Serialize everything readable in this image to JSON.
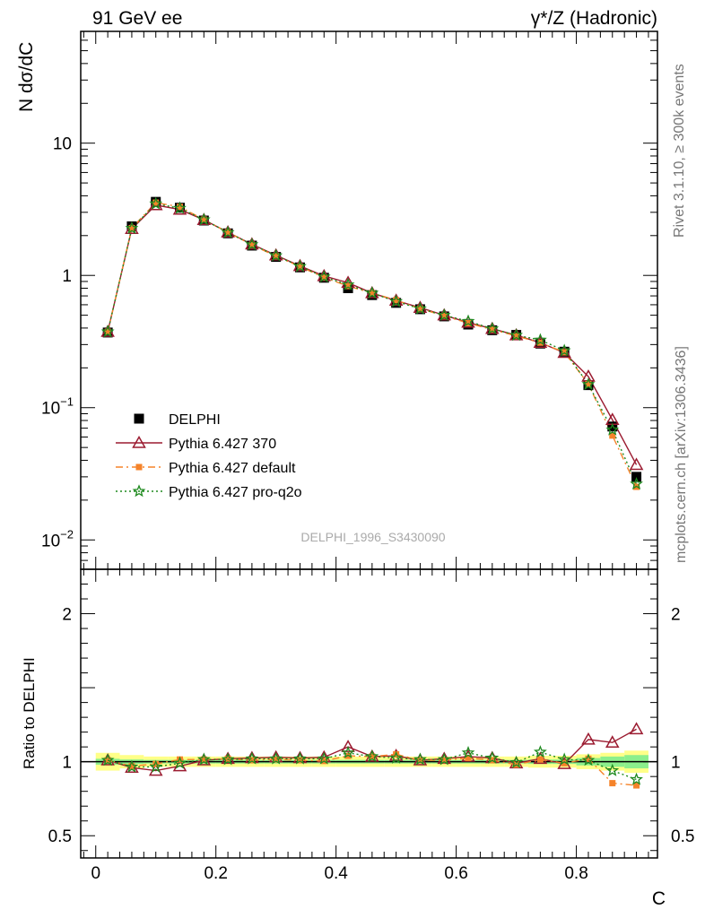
{
  "header": {
    "left": "91 GeV ee",
    "right": "γ*/Z (Hadronic)"
  },
  "side_labels": {
    "rivet": "Rivet 3.1.10, ≥ 300k events",
    "mcplots": "mcplots.cern.ch [arXiv:1306.3436]"
  },
  "watermark": "DELPHI_1996_S3430090",
  "chart_data": {
    "type": "line",
    "title": "",
    "xlabel": "C",
    "ylabel": "N dσ/dC",
    "ratio_ylabel": "Ratio to DELPHI",
    "xlim": [
      -0.025,
      0.935
    ],
    "ylim": [
      0.006,
      70
    ],
    "yscale": "log",
    "ratio_ylim": [
      0.35,
      2.3
    ],
    "x_ticks": [
      {
        "v": 0,
        "label": "0"
      },
      {
        "v": 0.2,
        "label": "0.2"
      },
      {
        "v": 0.4,
        "label": "0.4"
      },
      {
        "v": 0.6,
        "label": "0.6"
      },
      {
        "v": 0.8,
        "label": "0.8"
      }
    ],
    "y_ticks": [
      {
        "v": 10,
        "label": "10",
        "sup": ""
      },
      {
        "v": 1,
        "label": "1",
        "sup": ""
      },
      {
        "v": 0.1,
        "label": "10",
        "sup": "−1"
      },
      {
        "v": 0.01,
        "label": "10",
        "sup": "−2"
      }
    ],
    "ratio_y_ticks": [
      {
        "v": 0.5,
        "label": "0.5"
      },
      {
        "v": 1,
        "label": "1"
      },
      {
        "v": 2,
        "label": "2"
      }
    ],
    "x": [
      0.02,
      0.06,
      0.1,
      0.14,
      0.18,
      0.22,
      0.26,
      0.3,
      0.34,
      0.38,
      0.42,
      0.46,
      0.5,
      0.54,
      0.58,
      0.62,
      0.66,
      0.7,
      0.74,
      0.78,
      0.82,
      0.86,
      0.9
    ],
    "series": [
      {
        "name": "DELPHI",
        "color": "#000000",
        "marker": "square",
        "values": [
          0.37,
          2.35,
          3.6,
          3.25,
          2.6,
          2.08,
          1.68,
          1.38,
          1.15,
          0.96,
          0.8,
          0.71,
          0.62,
          0.555,
          0.49,
          0.425,
          0.385,
          0.355,
          0.305,
          0.265,
          0.148,
          0.072,
          0.03
        ]
      },
      {
        "name": "Pythia 6.427 370",
        "color": "#9b1b30",
        "marker": "triangle-open",
        "dash": "",
        "values": [
          0.375,
          2.25,
          3.4,
          3.15,
          2.63,
          2.12,
          1.72,
          1.42,
          1.18,
          0.99,
          0.88,
          0.735,
          0.645,
          0.57,
          0.5,
          0.44,
          0.395,
          0.353,
          0.31,
          0.26,
          0.172,
          0.081,
          0.037
        ]
      },
      {
        "name": "Pythia 6.427 default",
        "color": "#f5832a",
        "marker": "square-small",
        "dash": "8,4,2,4",
        "values": [
          0.375,
          2.28,
          3.55,
          3.3,
          2.64,
          2.12,
          1.7,
          1.4,
          1.165,
          0.965,
          0.83,
          0.735,
          0.65,
          0.56,
          0.495,
          0.435,
          0.39,
          0.348,
          0.31,
          0.262,
          0.151,
          0.0615,
          0.0252
        ]
      },
      {
        "name": "Pythia 6.427 pro-q2o",
        "color": "#1f8a1f",
        "marker": "star",
        "dash": "2,3",
        "values": [
          0.375,
          2.27,
          3.48,
          3.22,
          2.64,
          2.11,
          1.71,
          1.41,
          1.17,
          0.975,
          0.85,
          0.735,
          0.635,
          0.56,
          0.5,
          0.45,
          0.395,
          0.353,
          0.325,
          0.27,
          0.15,
          0.068,
          0.0265
        ]
      }
    ],
    "ratio_series": [
      {
        "name": "Pythia 6.427 370",
        "values": [
          1.01,
          0.96,
          0.94,
          0.97,
          1.01,
          1.02,
          1.025,
          1.03,
          1.025,
          1.03,
          1.1,
          1.035,
          1.04,
          1.01,
          1.02,
          1.035,
          1.025,
          0.99,
          1.02,
          0.985,
          1.15,
          1.13,
          1.22
        ]
      },
      {
        "name": "Pythia 6.427 default",
        "values": [
          1.01,
          0.97,
          0.985,
          1.015,
          1.015,
          1.02,
          1.01,
          1.015,
          1.01,
          1.005,
          1.04,
          1.035,
          1.05,
          1.01,
          1.01,
          1.025,
          1.01,
          0.98,
          1.015,
          0.99,
          1.02,
          0.855,
          0.84
        ]
      },
      {
        "name": "Pythia 6.427 pro-q2o",
        "values": [
          1.01,
          0.965,
          0.965,
          0.99,
          1.015,
          1.015,
          1.02,
          1.02,
          1.02,
          1.02,
          1.06,
          1.035,
          1.025,
          1.015,
          1.015,
          1.06,
          1.025,
          0.995,
          1.065,
          1.015,
          1.01,
          0.94,
          0.88
        ]
      }
    ],
    "band_inner": [
      0.02,
      0.015,
      0.012,
      0.012,
      0.012,
      0.012,
      0.012,
      0.012,
      0.012,
      0.012,
      0.012,
      0.012,
      0.012,
      0.012,
      0.012,
      0.012,
      0.012,
      0.012,
      0.015,
      0.015,
      0.025,
      0.035,
      0.045
    ],
    "band_outer": [
      0.06,
      0.045,
      0.035,
      0.035,
      0.035,
      0.035,
      0.035,
      0.035,
      0.035,
      0.035,
      0.035,
      0.035,
      0.035,
      0.035,
      0.035,
      0.035,
      0.035,
      0.035,
      0.04,
      0.04,
      0.05,
      0.06,
      0.075
    ],
    "legend": [
      "DELPHI",
      "Pythia 6.427 370",
      "Pythia 6.427 default",
      "Pythia 6.427 pro-q2o"
    ],
    "legend_position": "bottom-left"
  }
}
